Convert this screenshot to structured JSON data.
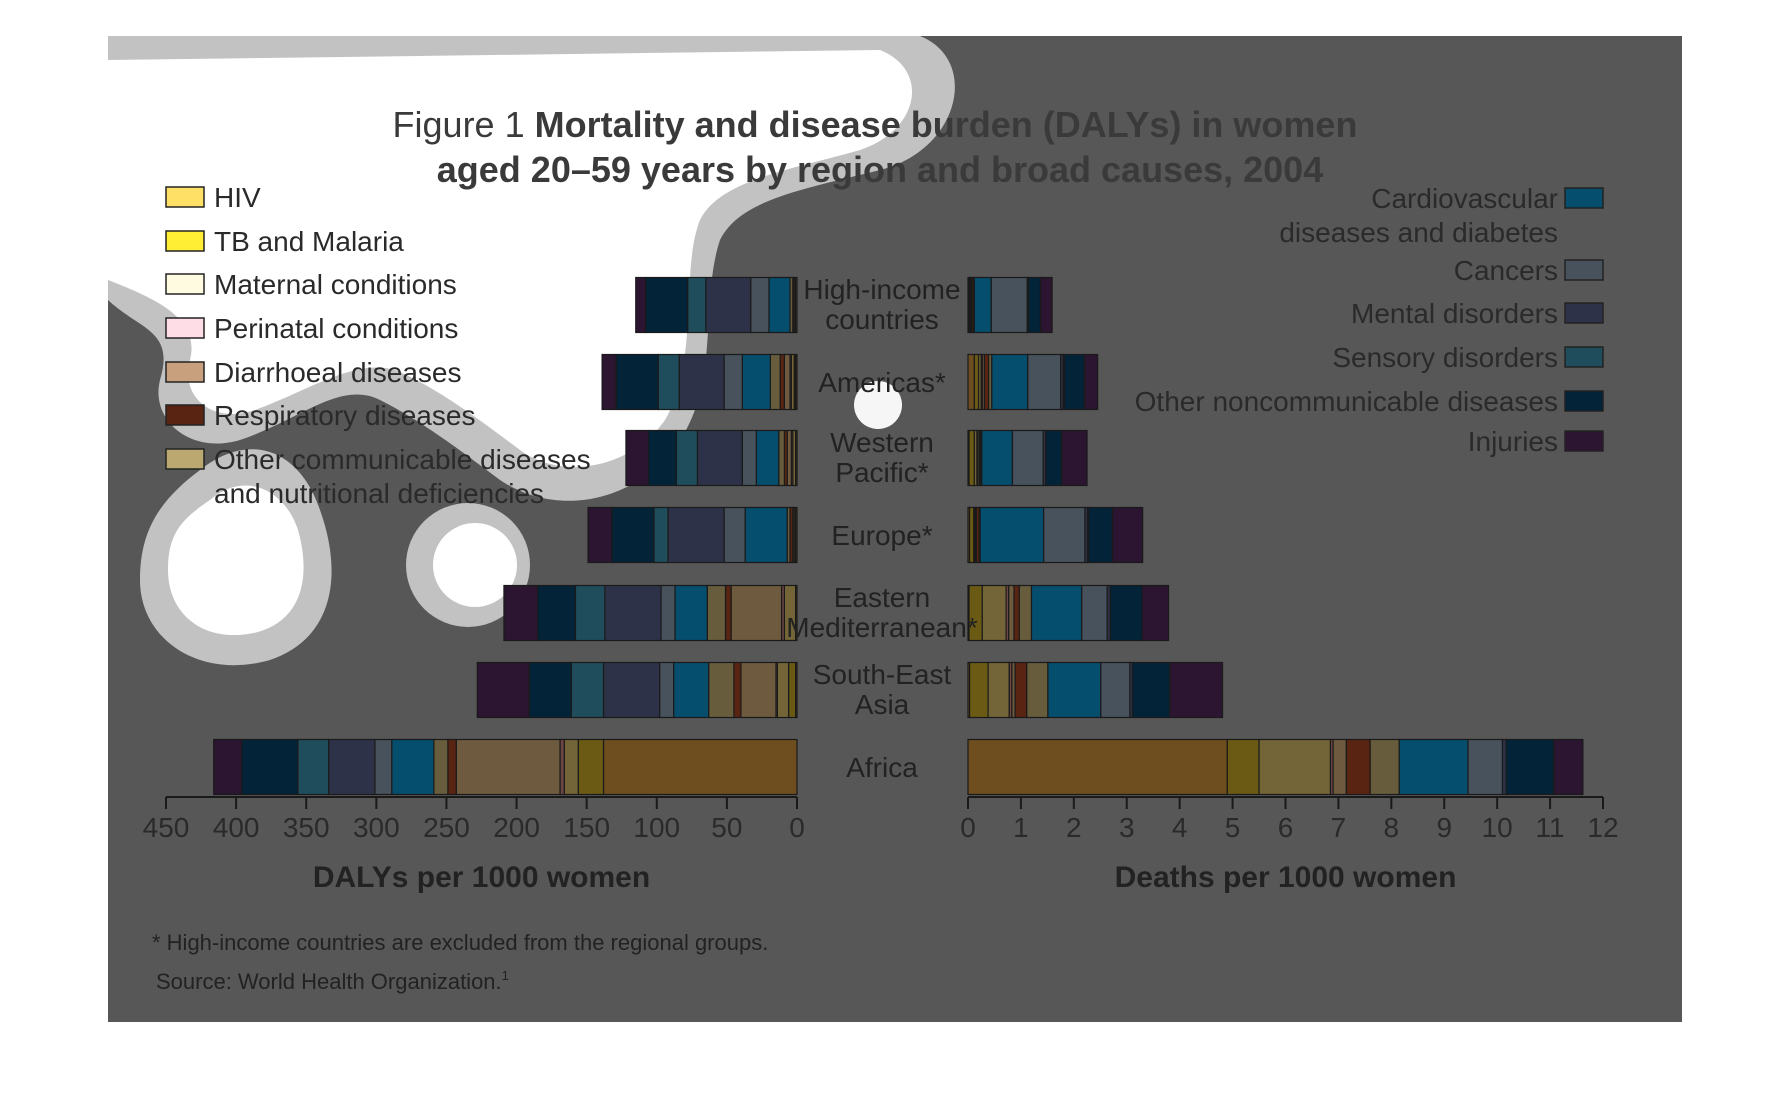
{
  "figure": {
    "title_prefix": "Figure 1",
    "title_bold_line1": "Mortality and disease burden (DALYs) in women",
    "title_bold_line2": "aged 20–59 years by region and broad causes, 2004",
    "footnote": "* High-income countries are excluded from the regional groups.",
    "source": "Source: World Health Organization.",
    "source_superscript": "1"
  },
  "colors": {
    "background": "#575757",
    "axis": "#1a1a1a",
    "text": "#222222",
    "HIV": "#6e4d1e",
    "TB and Malaria": "#6a5a14",
    "Maternal conditions": "#746538",
    "Perinatal conditions": "#6e4646",
    "Diarrhoeal diseases": "#6e5a3e",
    "Respiratory diseases": "#5a2412",
    "Other communicable diseases and nutritional deficiencies": "#675c3b",
    "Cardiovascular diseases and diabetes": "#054e6e",
    "Cancers": "#48525c",
    "Mental disorders": "#2e3248",
    "Sensory disorders": "#1f4d5c",
    "Other noncommunicable diseases": "#032338",
    "Injuries": "#2c1530"
  },
  "legend_left": [
    {
      "label": "HIV",
      "swatch": "#ffe066"
    },
    {
      "label": "TB and Malaria",
      "swatch": "#ffee33"
    },
    {
      "label": "Maternal conditions",
      "swatch": "#fffbe0"
    },
    {
      "label": "Perinatal conditions",
      "swatch": "#ffdde6"
    },
    {
      "label": "Diarrhoeal diseases",
      "swatch": "#c8a07e"
    },
    {
      "label": "Respiratory diseases",
      "swatch": "#5a2412"
    },
    {
      "label": "Other communicable diseases",
      "label2": "and nutritional deficiencies",
      "swatch": "#bba870"
    }
  ],
  "legend_right": [
    {
      "label": "Cardiovascular",
      "label2": "diseases and diabetes",
      "swatch": "#054e6e"
    },
    {
      "label": "Cancers",
      "swatch": "#48525c"
    },
    {
      "label": "Mental disorders",
      "swatch": "#2e3248"
    },
    {
      "label": "Sensory disorders",
      "swatch": "#1f4d5c"
    },
    {
      "label": "Other noncommunicable diseases",
      "swatch": "#032338"
    },
    {
      "label": "Injuries",
      "swatch": "#2c1530"
    }
  ],
  "chart_data": [
    {
      "type": "bar",
      "orientation": "horizontal",
      "stacked": true,
      "xlabel": "DALYs per 1000 women",
      "ylabel": "",
      "xlim": [
        0,
        450
      ],
      "x_reversed": true,
      "xticks": [
        450,
        400,
        350,
        300,
        250,
        200,
        150,
        100,
        50,
        0
      ],
      "categories": [
        "High-income countries",
        "Americas*",
        "Western Pacific*",
        "Europe*",
        "Eastern Mediterranean*",
        "South-East Asia",
        "Africa"
      ],
      "series": [
        {
          "name": "HIV",
          "values": [
            0,
            1,
            0,
            0,
            0,
            1,
            138
          ]
        },
        {
          "name": "TB and Malaria",
          "values": [
            0,
            1,
            1,
            1,
            1,
            5,
            18
          ]
        },
        {
          "name": "Maternal conditions",
          "values": [
            1,
            2,
            2,
            1,
            8,
            8,
            10
          ]
        },
        {
          "name": "Perinatal conditions",
          "values": [
            0,
            1,
            1,
            0,
            2,
            1,
            3
          ]
        },
        {
          "name": "Diarrhoeal diseases",
          "values": [
            1,
            4,
            3,
            1,
            36,
            25,
            74
          ]
        },
        {
          "name": "Respiratory diseases",
          "values": [
            1,
            3,
            2,
            2,
            4,
            5,
            6
          ]
        },
        {
          "name": "Other communicable diseases and nutritional deficiencies",
          "values": [
            2,
            7,
            4,
            2,
            13,
            18,
            10
          ]
        },
        {
          "name": "Cardiovascular diseases and diabetes",
          "values": [
            15,
            20,
            16,
            30,
            23,
            25,
            30
          ]
        },
        {
          "name": "Cancers",
          "values": [
            13,
            13,
            10,
            15,
            10,
            10,
            12
          ]
        },
        {
          "name": "Mental disorders",
          "values": [
            32,
            32,
            32,
            40,
            40,
            40,
            33
          ]
        },
        {
          "name": "Sensory disorders",
          "values": [
            13,
            15,
            15,
            10,
            21,
            23,
            22
          ]
        },
        {
          "name": "Other noncommunicable diseases",
          "values": [
            30,
            30,
            20,
            30,
            27,
            30,
            40
          ]
        },
        {
          "name": "Injuries",
          "values": [
            7,
            10,
            16,
            17,
            24,
            37,
            20
          ]
        }
      ]
    },
    {
      "type": "bar",
      "orientation": "horizontal",
      "stacked": true,
      "xlabel": "Deaths per 1000 women",
      "ylabel": "",
      "xlim": [
        0,
        12
      ],
      "xticks": [
        0,
        1,
        2,
        3,
        4,
        5,
        6,
        7,
        8,
        9,
        10,
        11,
        12
      ],
      "categories": [
        "High-income countries",
        "Americas*",
        "Western Pacific*",
        "Europe*",
        "Eastern Mediterranean*",
        "South-East Asia",
        "Africa"
      ],
      "series": [
        {
          "name": "HIV",
          "values": [
            0.02,
            0.12,
            0.02,
            0.03,
            0.02,
            0.03,
            4.9
          ]
        },
        {
          "name": "TB and Malaria",
          "values": [
            0.02,
            0.08,
            0.1,
            0.08,
            0.25,
            0.35,
            0.6
          ]
        },
        {
          "name": "Maternal conditions",
          "values": [
            0.02,
            0.05,
            0.05,
            0.02,
            0.45,
            0.4,
            1.35
          ]
        },
        {
          "name": "Perinatal conditions",
          "values": [
            0.0,
            0.02,
            0.02,
            0.02,
            0.05,
            0.05,
            0.05
          ]
        },
        {
          "name": "Diarrhoeal diseases",
          "values": [
            0.01,
            0.04,
            0.03,
            0.01,
            0.1,
            0.06,
            0.25
          ]
        },
        {
          "name": "Respiratory diseases",
          "values": [
            0.03,
            0.08,
            0.02,
            0.05,
            0.1,
            0.22,
            0.45
          ]
        },
        {
          "name": "Other communicable diseases and nutritional deficiencies",
          "values": [
            0.02,
            0.06,
            0.02,
            0.02,
            0.23,
            0.4,
            0.55
          ]
        },
        {
          "name": "Cardiovascular diseases and diabetes",
          "values": [
            0.32,
            0.68,
            0.58,
            1.2,
            0.95,
            1.0,
            1.3
          ]
        },
        {
          "name": "Cancers",
          "values": [
            0.68,
            0.62,
            0.58,
            0.78,
            0.48,
            0.55,
            0.65
          ]
        },
        {
          "name": "Mental disorders",
          "values": [
            0.02,
            0.05,
            0.05,
            0.05,
            0.06,
            0.05,
            0.07
          ]
        },
        {
          "name": "Sensory disorders",
          "values": [
            0.0,
            0.02,
            0.0,
            0.02,
            0.0,
            0.0,
            0.0
          ]
        },
        {
          "name": "Other noncommunicable diseases",
          "values": [
            0.23,
            0.38,
            0.3,
            0.45,
            0.6,
            0.7,
            0.9
          ]
        },
        {
          "name": "Injuries",
          "values": [
            0.22,
            0.25,
            0.48,
            0.57,
            0.5,
            1.0,
            0.55
          ]
        }
      ]
    }
  ]
}
